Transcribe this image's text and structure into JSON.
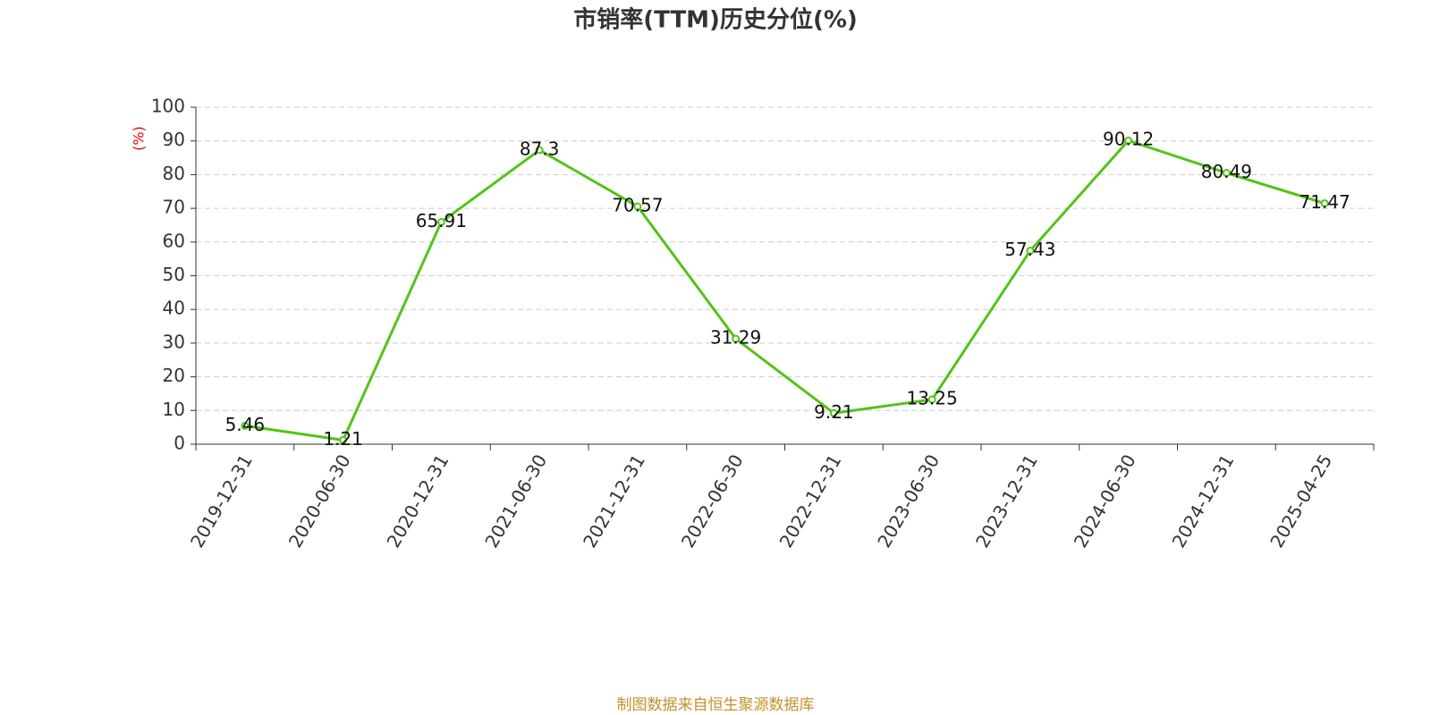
{
  "chart_data": {
    "type": "line",
    "title": "市销率(TTM)历史分位(%)",
    "y_label": "(%)",
    "categories": [
      "2019-12-31",
      "2020-06-30",
      "2020-12-31",
      "2021-06-30",
      "2021-12-31",
      "2022-06-30",
      "2022-12-31",
      "2023-06-30",
      "2023-12-31",
      "2024-06-30",
      "2024-12-31",
      "2025-04-25"
    ],
    "series": [
      {
        "name": "市销率(TTM)历史分位",
        "color": "#52c41a",
        "values": [
          5.46,
          1.21,
          65.91,
          87.3,
          70.57,
          31.29,
          9.21,
          13.25,
          57.43,
          90.12,
          80.49,
          71.47
        ]
      }
    ],
    "ylim": [
      0,
      100
    ],
    "yticks": [
      0,
      10,
      20,
      30,
      40,
      50,
      60,
      70,
      80,
      90,
      100
    ],
    "grid": true,
    "source": "制图数据来自恒生聚源数据库"
  }
}
